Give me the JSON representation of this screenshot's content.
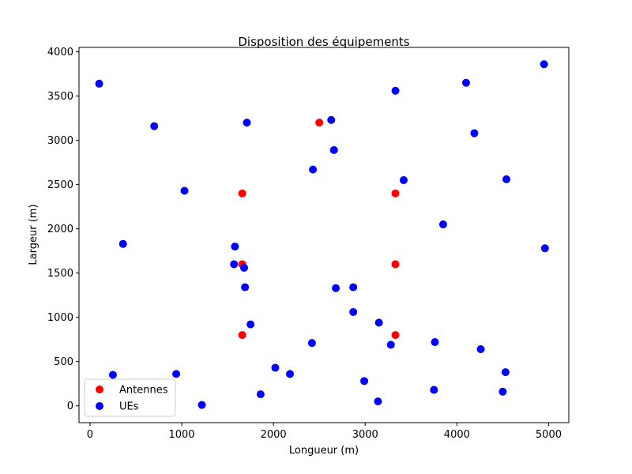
{
  "chart_data": {
    "type": "scatter",
    "title": "Disposition des équipements",
    "xlabel": "Longueur (m)",
    "ylabel": "Largeur (m)",
    "xlim": [
      -120,
      5220
    ],
    "ylim": [
      -190,
      4050
    ],
    "xticks": [
      0,
      1000,
      2000,
      3000,
      4000,
      5000
    ],
    "yticks": [
      0,
      500,
      1000,
      1500,
      2000,
      2500,
      3000,
      3500,
      4000
    ],
    "grid": false,
    "legend_position": "bottom-left",
    "series": [
      {
        "name": "Antennes",
        "color": "#ff0000",
        "points": [
          [
            1660,
            2400
          ],
          [
            1660,
            1600
          ],
          [
            1660,
            800
          ],
          [
            2500,
            3200
          ],
          [
            3330,
            2400
          ],
          [
            3330,
            1600
          ],
          [
            3330,
            800
          ]
        ]
      },
      {
        "name": "UEs",
        "color": "#0000ff",
        "points": [
          [
            100,
            3640
          ],
          [
            700,
            3160
          ],
          [
            1030,
            2430
          ],
          [
            360,
            1830
          ],
          [
            250,
            350
          ],
          [
            940,
            360
          ],
          [
            1220,
            10
          ],
          [
            1580,
            1800
          ],
          [
            1570,
            1600
          ],
          [
            1680,
            1560
          ],
          [
            1690,
            1340
          ],
          [
            1750,
            920
          ],
          [
            1710,
            3200
          ],
          [
            2020,
            430
          ],
          [
            2180,
            360
          ],
          [
            1860,
            130
          ],
          [
            2420,
            710
          ],
          [
            2430,
            2670
          ],
          [
            2630,
            3230
          ],
          [
            2660,
            2890
          ],
          [
            2680,
            1330
          ],
          [
            2870,
            1340
          ],
          [
            2870,
            1060
          ],
          [
            2990,
            280
          ],
          [
            3140,
            50
          ],
          [
            3150,
            940
          ],
          [
            3280,
            690
          ],
          [
            3330,
            3560
          ],
          [
            3420,
            2550
          ],
          [
            3760,
            720
          ],
          [
            3750,
            180
          ],
          [
            3850,
            2050
          ],
          [
            4100,
            3650
          ],
          [
            4190,
            3080
          ],
          [
            4260,
            640
          ],
          [
            4500,
            160
          ],
          [
            4530,
            380
          ],
          [
            4540,
            2560
          ],
          [
            4950,
            3860
          ],
          [
            4960,
            1780
          ]
        ]
      }
    ]
  }
}
